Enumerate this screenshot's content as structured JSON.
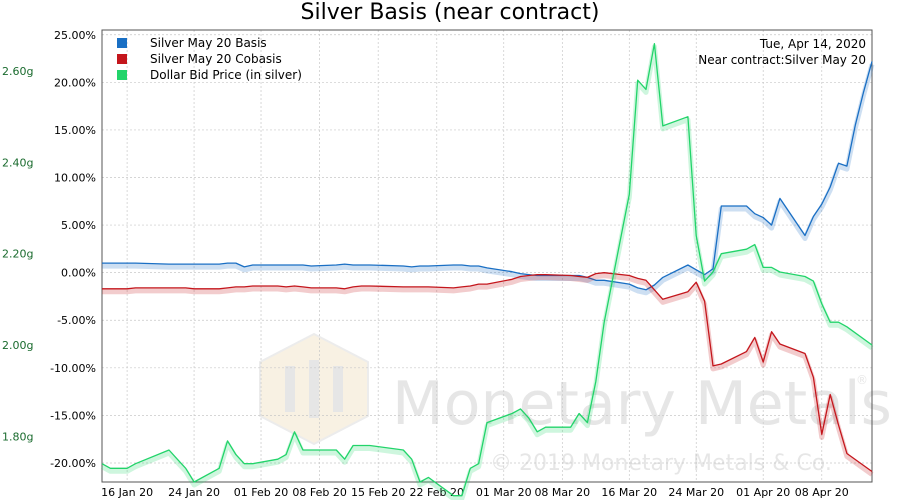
{
  "chart_data": {
    "type": "line",
    "title": "Silver Basis (near contract)",
    "date_label": "Tue, Apr 14, 2020",
    "contract_label": "Near contract:Silver May 20",
    "watermark": {
      "brand": "Monetary Metals",
      "registered": "®",
      "copyright": "© 2019 Monetary Metals & Co."
    },
    "legend_position": "top-left",
    "grid": true,
    "x_ticks": [
      "16 Jan 20",
      "24 Jan 20",
      "01 Feb 20",
      "08 Feb 20",
      "15 Feb 20",
      "22 Feb 20",
      "01 Mar 20",
      "08 Mar 20",
      "16 Mar 20",
      "24 Mar 20",
      "01 Apr 20",
      "08 Apr 20"
    ],
    "x_range": [
      "2020-01-13",
      "2020-04-14"
    ],
    "y_left": {
      "range": [
        -0.22,
        0.255
      ],
      "ticks": [
        {
          "v": 0.25,
          "label": "25.00%"
        },
        {
          "v": 0.2,
          "label": "20.00%"
        },
        {
          "v": 0.15,
          "label": "15.00%"
        },
        {
          "v": 0.1,
          "label": "10.00%"
        },
        {
          "v": 0.05,
          "label": "5.00%"
        },
        {
          "v": 0,
          "label": "0.00%"
        },
        {
          "v": -0.05,
          "label": "-5.00%"
        },
        {
          "v": -0.1,
          "label": "-10.00%"
        },
        {
          "v": -0.15,
          "label": "-15.00%"
        },
        {
          "v": -0.2,
          "label": "-20.00%"
        }
      ]
    },
    "y_right": {
      "range": [
        1.7,
        2.69
      ],
      "ticks": [
        {
          "v": 2.6,
          "label": "2.60g"
        },
        {
          "v": 2.4,
          "label": "2.40g"
        },
        {
          "v": 2.2,
          "label": "2.20g"
        },
        {
          "v": 2.0,
          "label": "2.00g"
        },
        {
          "v": 1.8,
          "label": "1.80g"
        }
      ]
    },
    "series": [
      {
        "name": "Silver May 20 Basis",
        "color": "#1a6fc4",
        "axis": "left",
        "points": [
          [
            "2020-01-13",
            0.01
          ],
          [
            "2020-01-14",
            0.01
          ],
          [
            "2020-01-15",
            0.01
          ],
          [
            "2020-01-16",
            0.01
          ],
          [
            "2020-01-17",
            0.01
          ],
          [
            "2020-01-21",
            0.009
          ],
          [
            "2020-01-22",
            0.009
          ],
          [
            "2020-01-23",
            0.009
          ],
          [
            "2020-01-24",
            0.009
          ],
          [
            "2020-01-27",
            0.009
          ],
          [
            "2020-01-28",
            0.01
          ],
          [
            "2020-01-29",
            0.01
          ],
          [
            "2020-01-30",
            0.006
          ],
          [
            "2020-01-31",
            0.008
          ],
          [
            "2020-02-03",
            0.008
          ],
          [
            "2020-02-04",
            0.008
          ],
          [
            "2020-02-05",
            0.008
          ],
          [
            "2020-02-06",
            0.008
          ],
          [
            "2020-02-07",
            0.007
          ],
          [
            "2020-02-10",
            0.008
          ],
          [
            "2020-02-11",
            0.009
          ],
          [
            "2020-02-12",
            0.008
          ],
          [
            "2020-02-13",
            0.008
          ],
          [
            "2020-02-14",
            0.008
          ],
          [
            "2020-02-18",
            0.007
          ],
          [
            "2020-02-19",
            0.006
          ],
          [
            "2020-02-20",
            0.007
          ],
          [
            "2020-02-21",
            0.007
          ],
          [
            "2020-02-24",
            0.008
          ],
          [
            "2020-02-25",
            0.008
          ],
          [
            "2020-02-26",
            0.007
          ],
          [
            "2020-02-27",
            0.007
          ],
          [
            "2020-02-28",
            0.005
          ],
          [
            "2020-03-02",
            0.001
          ],
          [
            "2020-03-03",
            -0.001
          ],
          [
            "2020-03-04",
            -0.002
          ],
          [
            "2020-03-05",
            -0.003
          ],
          [
            "2020-03-06",
            -0.003
          ],
          [
            "2020-03-09",
            -0.003
          ],
          [
            "2020-03-10",
            -0.003
          ],
          [
            "2020-03-11",
            -0.005
          ],
          [
            "2020-03-12",
            -0.008
          ],
          [
            "2020-03-13",
            -0.008
          ],
          [
            "2020-03-16",
            -0.012
          ],
          [
            "2020-03-17",
            -0.016
          ],
          [
            "2020-03-18",
            -0.018
          ],
          [
            "2020-03-19",
            -0.013
          ],
          [
            "2020-03-20",
            -0.005
          ],
          [
            "2020-03-23",
            0.008
          ],
          [
            "2020-03-24",
            0.003
          ],
          [
            "2020-03-25",
            -0.002
          ],
          [
            "2020-03-26",
            0.004
          ],
          [
            "2020-03-27",
            0.07
          ],
          [
            "2020-03-30",
            0.07
          ],
          [
            "2020-03-31",
            0.062
          ],
          [
            "2020-04-01",
            0.058
          ],
          [
            "2020-04-02",
            0.05
          ],
          [
            "2020-04-03",
            0.078
          ],
          [
            "2020-04-06",
            0.039
          ],
          [
            "2020-04-07",
            0.059
          ],
          [
            "2020-04-08",
            0.072
          ],
          [
            "2020-04-09",
            0.09
          ],
          [
            "2020-04-10",
            0.115
          ],
          [
            "2020-04-11",
            0.112
          ],
          [
            "2020-04-12",
            0.155
          ],
          [
            "2020-04-13",
            0.19
          ],
          [
            "2020-04-14",
            0.222
          ]
        ]
      },
      {
        "name": "Silver May 20 Cobasis",
        "color": "#c4161c",
        "axis": "left",
        "points": [
          [
            "2020-01-13",
            -0.017
          ],
          [
            "2020-01-14",
            -0.017
          ],
          [
            "2020-01-15",
            -0.017
          ],
          [
            "2020-01-16",
            -0.017
          ],
          [
            "2020-01-17",
            -0.016
          ],
          [
            "2020-01-21",
            -0.016
          ],
          [
            "2020-01-22",
            -0.016
          ],
          [
            "2020-01-23",
            -0.016
          ],
          [
            "2020-01-24",
            -0.017
          ],
          [
            "2020-01-27",
            -0.017
          ],
          [
            "2020-01-28",
            -0.016
          ],
          [
            "2020-01-29",
            -0.015
          ],
          [
            "2020-01-30",
            -0.015
          ],
          [
            "2020-01-31",
            -0.014
          ],
          [
            "2020-02-03",
            -0.014
          ],
          [
            "2020-02-04",
            -0.015
          ],
          [
            "2020-02-05",
            -0.014
          ],
          [
            "2020-02-06",
            -0.015
          ],
          [
            "2020-02-07",
            -0.016
          ],
          [
            "2020-02-10",
            -0.016
          ],
          [
            "2020-02-11",
            -0.017
          ],
          [
            "2020-02-12",
            -0.015
          ],
          [
            "2020-02-13",
            -0.014
          ],
          [
            "2020-02-14",
            -0.014
          ],
          [
            "2020-02-18",
            -0.015
          ],
          [
            "2020-02-19",
            -0.015
          ],
          [
            "2020-02-20",
            -0.015
          ],
          [
            "2020-02-21",
            -0.015
          ],
          [
            "2020-02-24",
            -0.016
          ],
          [
            "2020-02-25",
            -0.015
          ],
          [
            "2020-02-26",
            -0.014
          ],
          [
            "2020-02-27",
            -0.012
          ],
          [
            "2020-02-28",
            -0.012
          ],
          [
            "2020-03-02",
            -0.007
          ],
          [
            "2020-03-03",
            -0.004
          ],
          [
            "2020-03-04",
            -0.003
          ],
          [
            "2020-03-05",
            -0.002
          ],
          [
            "2020-03-06",
            -0.002
          ],
          [
            "2020-03-09",
            -0.003
          ],
          [
            "2020-03-10",
            -0.004
          ],
          [
            "2020-03-11",
            -0.005
          ],
          [
            "2020-03-12",
            -0.001
          ],
          [
            "2020-03-13",
            0.0
          ],
          [
            "2020-03-16",
            -0.003
          ],
          [
            "2020-03-17",
            -0.006
          ],
          [
            "2020-03-18",
            -0.008
          ],
          [
            "2020-03-19",
            -0.018
          ],
          [
            "2020-03-20",
            -0.028
          ],
          [
            "2020-03-23",
            -0.02
          ],
          [
            "2020-03-24",
            -0.01
          ],
          [
            "2020-03-25",
            -0.03
          ],
          [
            "2020-03-26",
            -0.098
          ],
          [
            "2020-03-27",
            -0.096
          ],
          [
            "2020-03-30",
            -0.083
          ],
          [
            "2020-03-31",
            -0.068
          ],
          [
            "2020-04-01",
            -0.094
          ],
          [
            "2020-04-02",
            -0.062
          ],
          [
            "2020-04-03",
            -0.075
          ],
          [
            "2020-04-06",
            -0.085
          ],
          [
            "2020-04-07",
            -0.11
          ],
          [
            "2020-04-08",
            -0.17
          ],
          [
            "2020-04-09",
            -0.128
          ],
          [
            "2020-04-10",
            -0.16
          ],
          [
            "2020-04-11",
            -0.19
          ],
          [
            "2020-04-14",
            -0.209
          ]
        ]
      },
      {
        "name": "Dollar Bid Price (in silver)",
        "color": "#22d46a",
        "axis": "right",
        "points": [
          [
            "2020-01-13",
            1.74
          ],
          [
            "2020-01-14",
            1.73
          ],
          [
            "2020-01-15",
            1.73
          ],
          [
            "2020-01-16",
            1.73
          ],
          [
            "2020-01-17",
            1.74
          ],
          [
            "2020-01-21",
            1.77
          ],
          [
            "2020-01-22",
            1.75
          ],
          [
            "2020-01-23",
            1.73
          ],
          [
            "2020-01-24",
            1.7
          ],
          [
            "2020-01-27",
            1.73
          ],
          [
            "2020-01-28",
            1.79
          ],
          [
            "2020-01-29",
            1.76
          ],
          [
            "2020-01-30",
            1.74
          ],
          [
            "2020-01-31",
            1.74
          ],
          [
            "2020-02-03",
            1.75
          ],
          [
            "2020-02-04",
            1.76
          ],
          [
            "2020-02-05",
            1.81
          ],
          [
            "2020-02-06",
            1.77
          ],
          [
            "2020-02-07",
            1.77
          ],
          [
            "2020-02-10",
            1.77
          ],
          [
            "2020-02-11",
            1.75
          ],
          [
            "2020-02-12",
            1.78
          ],
          [
            "2020-02-13",
            1.78
          ],
          [
            "2020-02-14",
            1.78
          ],
          [
            "2020-02-18",
            1.77
          ],
          [
            "2020-02-19",
            1.75
          ],
          [
            "2020-02-20",
            1.7
          ],
          [
            "2020-02-21",
            1.71
          ],
          [
            "2020-02-24",
            1.67
          ],
          [
            "2020-02-25",
            1.67
          ],
          [
            "2020-02-26",
            1.73
          ],
          [
            "2020-02-27",
            1.74
          ],
          [
            "2020-02-28",
            1.83
          ],
          [
            "2020-03-02",
            1.85
          ],
          [
            "2020-03-03",
            1.86
          ],
          [
            "2020-03-04",
            1.84
          ],
          [
            "2020-03-05",
            1.81
          ],
          [
            "2020-03-06",
            1.82
          ],
          [
            "2020-03-09",
            1.82
          ],
          [
            "2020-03-10",
            1.85
          ],
          [
            "2020-03-11",
            1.83
          ],
          [
            "2020-03-12",
            1.92
          ],
          [
            "2020-03-13",
            2.05
          ],
          [
            "2020-03-16",
            2.33
          ],
          [
            "2020-03-17",
            2.58
          ],
          [
            "2020-03-18",
            2.56
          ],
          [
            "2020-03-19",
            2.66
          ],
          [
            "2020-03-20",
            2.48
          ],
          [
            "2020-03-23",
            2.5
          ],
          [
            "2020-03-24",
            2.24
          ],
          [
            "2020-03-25",
            2.14
          ],
          [
            "2020-03-26",
            2.16
          ],
          [
            "2020-03-27",
            2.2
          ],
          [
            "2020-03-30",
            2.21
          ],
          [
            "2020-03-31",
            2.22
          ],
          [
            "2020-04-01",
            2.17
          ],
          [
            "2020-04-02",
            2.17
          ],
          [
            "2020-04-03",
            2.16
          ],
          [
            "2020-04-06",
            2.15
          ],
          [
            "2020-04-07",
            2.14
          ],
          [
            "2020-04-08",
            2.09
          ],
          [
            "2020-04-09",
            2.05
          ],
          [
            "2020-04-10",
            2.05
          ],
          [
            "2020-04-11",
            2.04
          ],
          [
            "2020-04-14",
            2.0
          ]
        ]
      }
    ]
  }
}
